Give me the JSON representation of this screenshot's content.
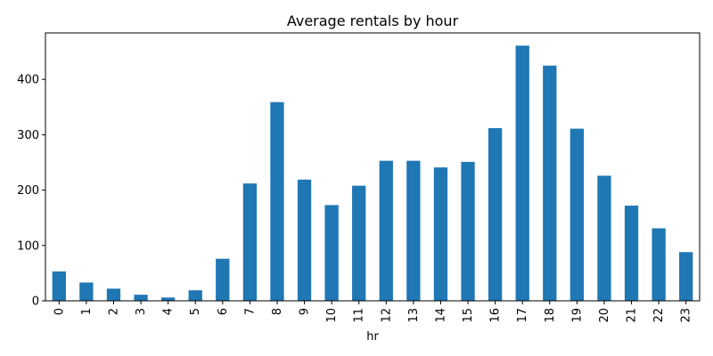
{
  "chart_data": {
    "type": "bar",
    "title": "Average rentals by hour",
    "xlabel": "hr",
    "ylabel": "",
    "categories": [
      "0",
      "1",
      "2",
      "3",
      "4",
      "5",
      "6",
      "7",
      "8",
      "9",
      "10",
      "11",
      "12",
      "13",
      "14",
      "15",
      "16",
      "17",
      "18",
      "19",
      "20",
      "21",
      "22",
      "23"
    ],
    "values": [
      53,
      33,
      22,
      11,
      6,
      19,
      76,
      212,
      359,
      219,
      173,
      208,
      253,
      253,
      241,
      251,
      312,
      461,
      425,
      311,
      226,
      172,
      131,
      88
    ],
    "yticks": [
      0,
      100,
      200,
      300,
      400
    ],
    "ylim": [
      0,
      484
    ],
    "bar_color": "#1f77b4",
    "grid": false,
    "legend": "none"
  }
}
